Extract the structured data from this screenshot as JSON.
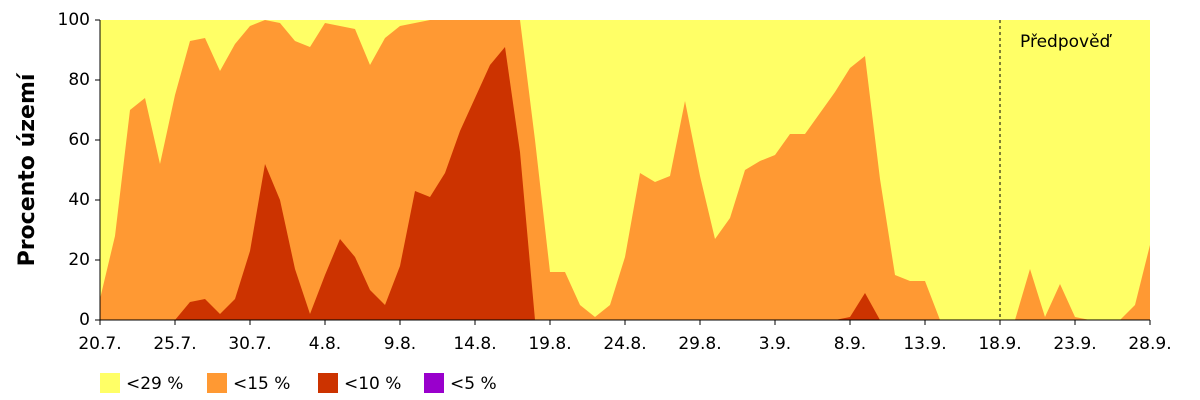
{
  "chart_data": {
    "type": "area",
    "y_label": "Procento území",
    "categories": [
      "20.7.",
      null,
      null,
      null,
      null,
      "25.7.",
      null,
      null,
      null,
      null,
      "30.7.",
      null,
      null,
      null,
      null,
      "4.8.",
      null,
      null,
      null,
      null,
      "9.8.",
      null,
      null,
      null,
      null,
      "14.8.",
      null,
      null,
      null,
      null,
      "19.8.",
      null,
      null,
      null,
      null,
      "24.8.",
      null,
      null,
      null,
      null,
      "29.8.",
      null,
      null,
      null,
      null,
      "3.9.",
      null,
      null,
      null,
      null,
      "8.9.",
      null,
      null,
      null,
      null,
      "13.9.",
      null,
      null,
      null,
      null,
      "18.9.",
      null,
      null,
      null,
      null,
      "23.9.",
      null,
      null,
      null,
      null,
      "28.9."
    ],
    "series": [
      {
        "name": "<29 %",
        "color": "#ffff66",
        "values": [
          100,
          100,
          100,
          100,
          100,
          100,
          100,
          100,
          100,
          100,
          100,
          100,
          100,
          100,
          100,
          100,
          100,
          100,
          100,
          100,
          100,
          100,
          100,
          100,
          100,
          100,
          100,
          100,
          100,
          100,
          100,
          100,
          100,
          100,
          100,
          100,
          100,
          100,
          100,
          100,
          100,
          100,
          100,
          100,
          100,
          100,
          100,
          100,
          100,
          100,
          100,
          100,
          100,
          100,
          100,
          100,
          100,
          100,
          100,
          100,
          100,
          100,
          100,
          100,
          100,
          100,
          100,
          100,
          100,
          100,
          100
        ]
      },
      {
        "name": "<15 %",
        "color": "#ff9933",
        "values": [
          7,
          28,
          70,
          74,
          52,
          75,
          93,
          94,
          83,
          92,
          98,
          100,
          99,
          93,
          91,
          99,
          98,
          97,
          85,
          94,
          98,
          99,
          100,
          100,
          100,
          100,
          100,
          100,
          100,
          60,
          16,
          16,
          5,
          1,
          5,
          21,
          49,
          46,
          48,
          73,
          48,
          27,
          34,
          50,
          53,
          55,
          62,
          62,
          69,
          76,
          84,
          88,
          47,
          15,
          13,
          13,
          0,
          0,
          0,
          0,
          0,
          0,
          17,
          1,
          12,
          1,
          0,
          0,
          0,
          5,
          25
        ]
      },
      {
        "name": "<10 %",
        "color": "#cc3300",
        "values": [
          0,
          0,
          0,
          0,
          0,
          0,
          6,
          7,
          2,
          7,
          23,
          52,
          40,
          17,
          2,
          15,
          27,
          21,
          10,
          5,
          18,
          43,
          41,
          49,
          63,
          74,
          85,
          91,
          56,
          0,
          0,
          0,
          0,
          0,
          0,
          0,
          0,
          0,
          0,
          0,
          0,
          0,
          0,
          0,
          0,
          0,
          0,
          0,
          0,
          0,
          1,
          9,
          0,
          0,
          0,
          0,
          0,
          0,
          0,
          0,
          0,
          0,
          0,
          0,
          0,
          0,
          0,
          0,
          0,
          0,
          0
        ]
      },
      {
        "name": "<5 %",
        "color": "#9900cc",
        "values": [
          0,
          0,
          0,
          0,
          0,
          0,
          0,
          0,
          0,
          0,
          0,
          0,
          0,
          0,
          0,
          0,
          0,
          0,
          0,
          0,
          0,
          0,
          0,
          0,
          0,
          0,
          0,
          0,
          0,
          0,
          0,
          0,
          0,
          0,
          0,
          0,
          0,
          0,
          0,
          0,
          0,
          0,
          0,
          0,
          0,
          0,
          0,
          0,
          0,
          0,
          0,
          0,
          0,
          0,
          0,
          0,
          0,
          0,
          0,
          0,
          0,
          0,
          0,
          0,
          0,
          0,
          0,
          0,
          0,
          0,
          0
        ]
      }
    ],
    "ylim": [
      0,
      100
    ],
    "yticks": [
      0,
      20,
      40,
      60,
      80,
      100
    ],
    "forecast_from": "18.9.",
    "forecast_label": "Předpověď"
  }
}
